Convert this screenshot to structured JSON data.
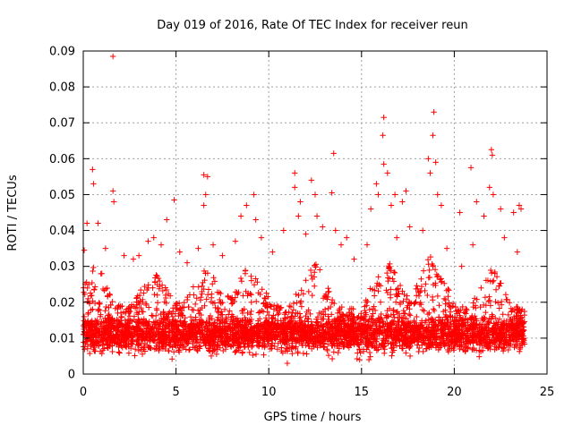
{
  "chart_data": {
    "type": "scatter",
    "title": "Day 019 of 2016, Rate Of TEC Index for receiver reun",
    "xlabel": "GPS time / hours",
    "ylabel": "ROTI / TECUs",
    "xlim": [
      0,
      25
    ],
    "ylim": [
      0,
      0.09
    ],
    "xticks": [
      0,
      5,
      10,
      15,
      20,
      25
    ],
    "xtick_labels": [
      "0",
      "5",
      "10",
      "15",
      "20",
      "25"
    ],
    "yticks": [
      0,
      0.01,
      0.02,
      0.03,
      0.04,
      0.05,
      0.06,
      0.07,
      0.08,
      0.09
    ],
    "ytick_labels": [
      "0",
      "0.01",
      "0.02",
      "0.03",
      "0.04",
      "0.05",
      "0.06",
      "0.07",
      "0.08",
      "0.09"
    ],
    "grid": true,
    "marker": "+",
    "marker_color": "#ff0000",
    "series": [
      {
        "values_note": "dense cloud of ROTI samples; baseline ~0.005-0.02 throughout 0-24 h",
        "points": [
          [
            0.05,
            0.0345
          ],
          [
            0.2,
            0.042
          ],
          [
            0.5,
            0.057
          ],
          [
            0.55,
            0.053
          ],
          [
            0.8,
            0.042
          ],
          [
            1.6,
            0.0885
          ],
          [
            1.6,
            0.051
          ],
          [
            1.65,
            0.048
          ],
          [
            3.0,
            0.033
          ],
          [
            3.8,
            0.038
          ],
          [
            4.5,
            0.043
          ],
          [
            4.9,
            0.0485
          ],
          [
            6.5,
            0.0555
          ],
          [
            6.7,
            0.055
          ],
          [
            6.6,
            0.05
          ],
          [
            6.5,
            0.047
          ],
          [
            8.5,
            0.044
          ],
          [
            8.8,
            0.047
          ],
          [
            9.2,
            0.05
          ],
          [
            9.3,
            0.043
          ],
          [
            11.4,
            0.056
          ],
          [
            11.4,
            0.052
          ],
          [
            11.6,
            0.044
          ],
          [
            11.7,
            0.048
          ],
          [
            12.3,
            0.054
          ],
          [
            12.5,
            0.05
          ],
          [
            12.6,
            0.044
          ],
          [
            13.5,
            0.0615
          ],
          [
            13.4,
            0.0505
          ],
          [
            13.6,
            0.04
          ],
          [
            15.5,
            0.046
          ],
          [
            15.8,
            0.053
          ],
          [
            15.9,
            0.05
          ],
          [
            16.2,
            0.0715
          ],
          [
            16.15,
            0.0665
          ],
          [
            16.2,
            0.0585
          ],
          [
            16.4,
            0.056
          ],
          [
            16.6,
            0.047
          ],
          [
            16.8,
            0.05
          ],
          [
            17.2,
            0.048
          ],
          [
            17.4,
            0.051
          ],
          [
            18.6,
            0.06
          ],
          [
            18.7,
            0.056
          ],
          [
            18.9,
            0.073
          ],
          [
            18.85,
            0.0665
          ],
          [
            19.0,
            0.059
          ],
          [
            19.1,
            0.05
          ],
          [
            19.3,
            0.047
          ],
          [
            20.3,
            0.045
          ],
          [
            20.9,
            0.0575
          ],
          [
            21.2,
            0.048
          ],
          [
            21.6,
            0.044
          ],
          [
            21.9,
            0.052
          ],
          [
            22.0,
            0.0625
          ],
          [
            22.05,
            0.061
          ],
          [
            22.1,
            0.05
          ],
          [
            22.5,
            0.046
          ],
          [
            23.2,
            0.045
          ],
          [
            23.5,
            0.047
          ],
          [
            23.6,
            0.046
          ],
          [
            23.4,
            0.034
          ],
          [
            22.7,
            0.038
          ],
          [
            21.0,
            0.036
          ],
          [
            20.4,
            0.03
          ],
          [
            19.6,
            0.035
          ],
          [
            18.3,
            0.04
          ],
          [
            17.6,
            0.041
          ],
          [
            16.9,
            0.038
          ],
          [
            15.3,
            0.036
          ],
          [
            14.6,
            0.032
          ],
          [
            13.9,
            0.036
          ],
          [
            12.9,
            0.041
          ],
          [
            12.0,
            0.039
          ],
          [
            10.8,
            0.04
          ],
          [
            10.2,
            0.034
          ],
          [
            9.6,
            0.038
          ],
          [
            8.2,
            0.037
          ],
          [
            7.5,
            0.033
          ],
          [
            7.0,
            0.036
          ],
          [
            6.2,
            0.035
          ],
          [
            5.6,
            0.031
          ],
          [
            5.2,
            0.034
          ],
          [
            4.2,
            0.036
          ],
          [
            3.5,
            0.037
          ],
          [
            2.7,
            0.032
          ],
          [
            2.2,
            0.033
          ],
          [
            1.2,
            0.035
          ],
          [
            0.3,
            0.025
          ],
          [
            1.0,
            0.028
          ],
          [
            14.2,
            0.038
          ],
          [
            14.9,
            0.004
          ],
          [
            11.0,
            0.003
          ],
          [
            15.4,
            0.004
          ]
        ]
      }
    ]
  }
}
